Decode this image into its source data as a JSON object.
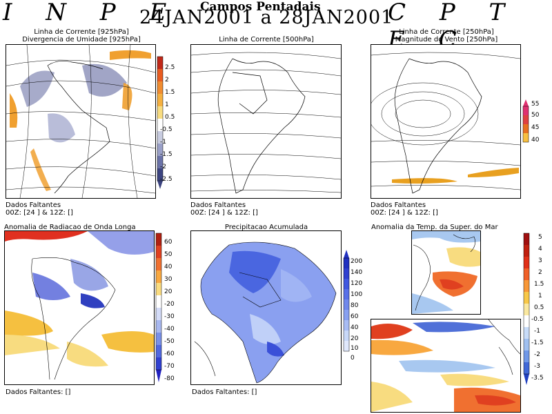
{
  "header": {
    "left_logo": "I N P E",
    "right_logo": "C P T E C",
    "title": "Campos Pentadais",
    "period": "24JAN2001 a 28JAN2001"
  },
  "panels": {
    "p1": {
      "title_line1": "Linha de Corrente [925hPa]",
      "title_line2": "Divergencia de Umidade [925hPa]",
      "missing": "Dados Faltantes",
      "missing_detail": "00Z: [24 ] & 12Z: []"
    },
    "p2": {
      "title_line1": "Linha de Corrente [500hPa]",
      "missing": "Dados Faltantes",
      "missing_detail": "00Z: [24 ] & 12Z: []"
    },
    "p3": {
      "title_line1": "Linha de Corrente [250hPa]",
      "title_line2": "Magnitude do Vento [250hPa]",
      "missing": "Dados Faltantes",
      "missing_detail": "00Z: [24 ] & 12Z: []"
    },
    "p4": {
      "title_line1": "Anomalia de Radiacao de Onda Longa",
      "missing": "Dados Faltantes: []"
    },
    "p5": {
      "title_line1": "Precipitacao Acumulada",
      "missing": "Dados Faltantes: []"
    },
    "p6": {
      "title_line1": "Anomalia da Temp. da Super. do Mar"
    }
  },
  "colorbars": {
    "cb1": [
      "2.5",
      "2",
      "1.5",
      "1",
      "0.5",
      "-0.5",
      "-1",
      "-1.5",
      "-2",
      "-2.5"
    ],
    "cb3": [
      "55",
      "50",
      "45",
      "40"
    ],
    "cb4": [
      "60",
      "50",
      "40",
      "30",
      "20",
      "-20",
      "-30",
      "-40",
      "-50",
      "-60",
      "-70",
      "-80"
    ],
    "cb5": [
      "200",
      "140",
      "120",
      "100",
      "80",
      "60",
      "40",
      "20",
      "10",
      "0"
    ],
    "cb6": [
      "5",
      "4",
      "3",
      "2",
      "1.5",
      "1",
      "0.5",
      "-0.5",
      "-1",
      "-1.5",
      "-2",
      "-3",
      "-3.5"
    ]
  }
}
